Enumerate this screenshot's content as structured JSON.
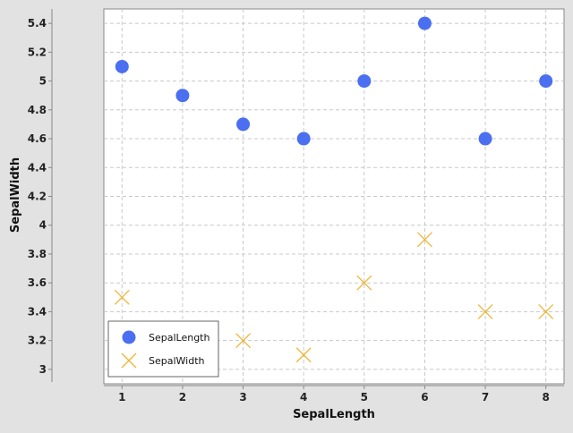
{
  "colors": {
    "background": "#e2e2e2",
    "plot_background": "#ffffff",
    "grid": "#c8c8c8",
    "axis": "#888888",
    "series_length": "#4a6ff0",
    "series_width": "#f2b535"
  },
  "chart_data": {
    "type": "scatter",
    "title": "",
    "xlabel": "SepalLength",
    "ylabel": "SepalWidth",
    "xlim": [
      0.7,
      8.3
    ],
    "ylim": [
      2.9,
      5.5
    ],
    "x_ticks": [
      "1",
      "2",
      "3",
      "4",
      "5",
      "6",
      "7",
      "8"
    ],
    "y_ticks": [
      "3",
      "3.2",
      "3.4",
      "3.6",
      "3.8",
      "4",
      "4.2",
      "4.4",
      "4.6",
      "4.8",
      "5",
      "5.2",
      "5.4"
    ],
    "grid": true,
    "legend_position": "bottom-left",
    "series": [
      {
        "name": "SepalLength",
        "marker": "circle",
        "x": [
          1,
          2,
          3,
          4,
          5,
          6,
          7,
          8
        ],
        "y": [
          5.1,
          4.9,
          4.7,
          4.6,
          5.0,
          5.4,
          4.6,
          5.0
        ]
      },
      {
        "name": "SepalWidth",
        "marker": "x",
        "x": [
          1,
          3,
          4,
          5,
          6,
          7,
          8
        ],
        "y": [
          3.5,
          3.2,
          3.1,
          3.6,
          3.9,
          3.4,
          3.4
        ]
      }
    ]
  }
}
